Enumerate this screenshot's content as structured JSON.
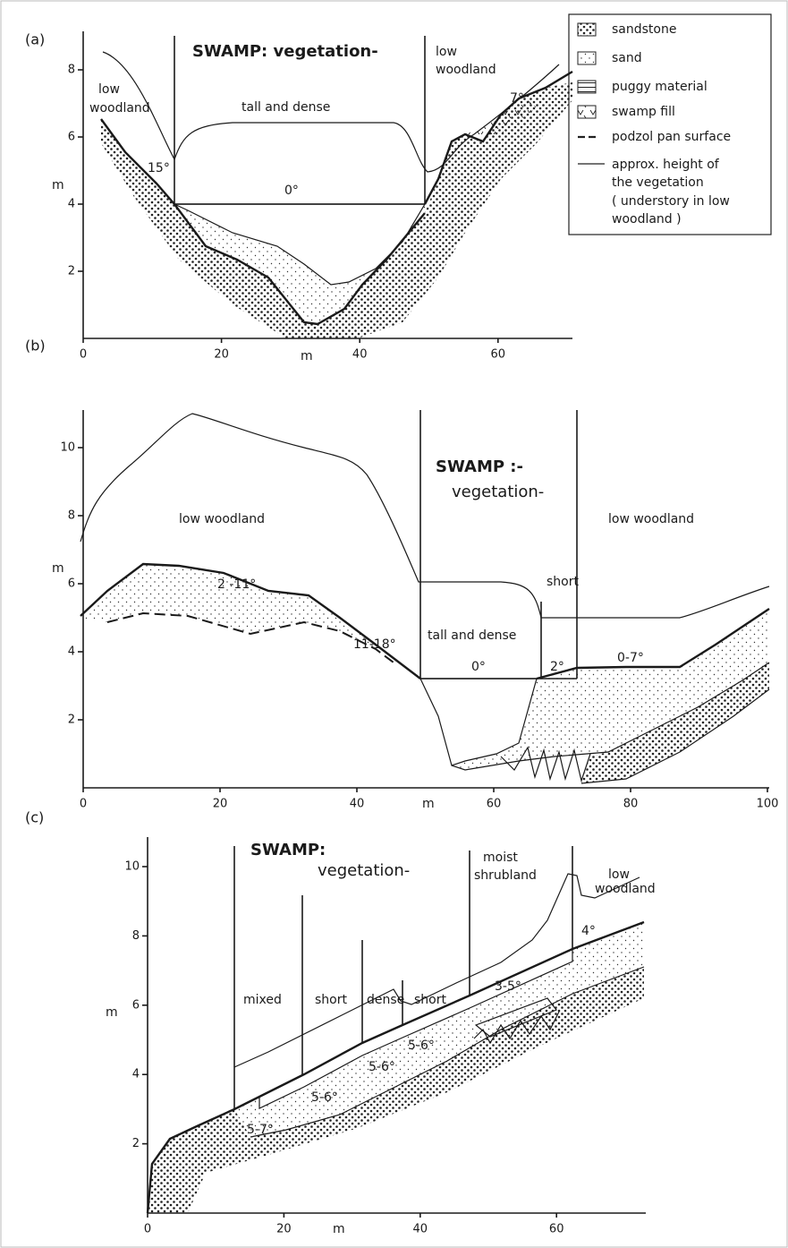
{
  "legend": {
    "items": [
      "sandstone",
      "sand",
      "puggy material",
      "swamp fill",
      "podzol pan surface"
    ],
    "note": [
      "approx. height of",
      "the vegetation",
      "( understory in low",
      "woodland )"
    ]
  },
  "panels": [
    {
      "label": "(a)",
      "y_axis_label": "m",
      "x_axis_label": "m",
      "xticks": [
        0,
        20,
        40,
        60
      ],
      "yticks": [
        2,
        4,
        6,
        8
      ],
      "texts": [
        "SWAMP: vegetation-",
        "tall and dense",
        "low",
        "woodland",
        "low",
        "woodland",
        "15°",
        "0°",
        "7°"
      ]
    },
    {
      "label": "(b)",
      "y_axis_label": "m",
      "x_axis_label": "m",
      "xticks": [
        0,
        20,
        40,
        60,
        80,
        100
      ],
      "yticks": [
        2,
        4,
        6,
        8,
        10
      ],
      "texts": [
        "SWAMP :-",
        "vegetation-",
        "low woodland",
        "low woodland",
        "tall and dense",
        "short",
        "2 -11°",
        "11-18°",
        "0°",
        "2°",
        "0-7°"
      ]
    },
    {
      "label": "(c)",
      "y_axis_label": "m",
      "x_axis_label": "m",
      "xticks": [
        0,
        20,
        40,
        60
      ],
      "yticks": [
        2,
        4,
        6,
        8,
        10
      ],
      "texts": [
        "SWAMP:",
        "vegetation-",
        "moist",
        "shrubland",
        "low",
        "woodland",
        "mixed",
        "short",
        "dense",
        "short",
        "3-5°",
        "4°",
        "5-6°",
        "5-6°",
        "5-6°",
        "5-7°"
      ]
    }
  ]
}
